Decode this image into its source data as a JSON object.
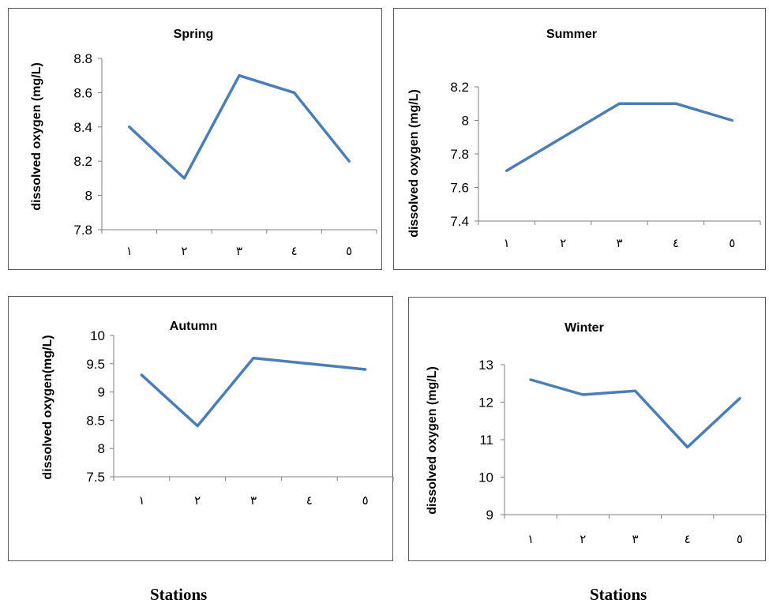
{
  "chart_data": [
    {
      "type": "line",
      "title": "Spring",
      "ylabel": "dissolved oxygen (mg/L)",
      "xlabel": "",
      "categories": [
        "١",
        "٢",
        "٣",
        "٤",
        "٥"
      ],
      "values": [
        8.4,
        8.1,
        8.7,
        8.6,
        8.2
      ],
      "ylim": [
        7.8,
        8.8
      ],
      "yticks": [
        "7.8",
        "8",
        "8.2",
        "8.4",
        "8.6",
        "8.8"
      ],
      "grid": false,
      "legend": "none",
      "color": "#4a7ebb"
    },
    {
      "type": "line",
      "title": "Summer",
      "ylabel": "dissolved oxygen (mg/L)",
      "xlabel": "",
      "categories": [
        "١",
        "٢",
        "٣",
        "٤",
        "٥"
      ],
      "values": [
        7.7,
        7.9,
        8.1,
        8.1,
        8.0
      ],
      "ylim": [
        7.4,
        8.2
      ],
      "yticks": [
        "7.4",
        "7.6",
        "7.8",
        "8",
        "8.2"
      ],
      "grid": false,
      "legend": "none",
      "color": "#4a7ebb"
    },
    {
      "type": "line",
      "title": "Autumn",
      "ylabel": "dissolved oxygen(mg/L)",
      "xlabel": "",
      "categories": [
        "١",
        "٢",
        "٣",
        "٤",
        "٥"
      ],
      "values": [
        9.3,
        8.4,
        9.6,
        9.5,
        9.4
      ],
      "ylim": [
        7.5,
        10
      ],
      "yticks": [
        "7.5",
        "8",
        "8.5",
        "9",
        "9.5",
        "10"
      ],
      "grid": false,
      "legend": "none",
      "color": "#4a7ebb"
    },
    {
      "type": "line",
      "title": "Winter",
      "ylabel": "dissolved oxygen (mg/L)",
      "xlabel": "",
      "categories": [
        "١",
        "٢",
        "٣",
        "٤",
        "٥"
      ],
      "values": [
        12.6,
        12.2,
        12.3,
        10.8,
        12.1
      ],
      "ylim": [
        9,
        13
      ],
      "yticks": [
        "9",
        "10",
        "11",
        "12",
        "13"
      ],
      "grid": false,
      "legend": "none",
      "color": "#4a7ebb"
    }
  ],
  "footer": {
    "left_label": "Stations",
    "right_label": "Stations"
  }
}
